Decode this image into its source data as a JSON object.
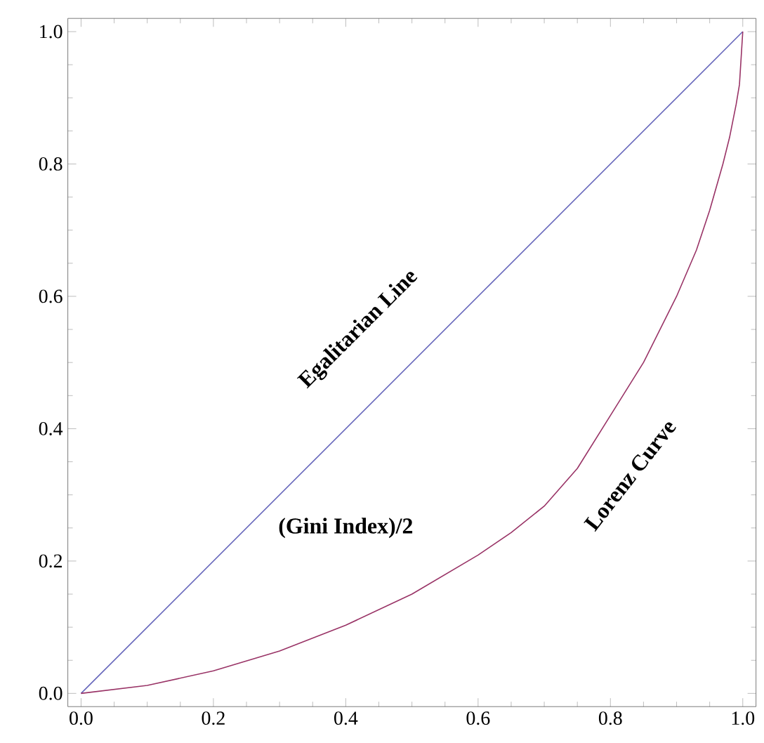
{
  "chart_data": {
    "type": "line",
    "xlim": [
      -0.02,
      1.02
    ],
    "ylim": [
      -0.02,
      1.02
    ],
    "xticks": [
      {
        "value": 0,
        "label": "0.0"
      },
      {
        "value": 0.2,
        "label": "0.2"
      },
      {
        "value": 0.4,
        "label": "0.4"
      },
      {
        "value": 0.6,
        "label": "0.6"
      },
      {
        "value": 0.8,
        "label": "0.8"
      },
      {
        "value": 1,
        "label": "1.0"
      }
    ],
    "yticks": [
      {
        "value": 0,
        "label": "0.0"
      },
      {
        "value": 0.2,
        "label": "0.2"
      },
      {
        "value": 0.4,
        "label": "0.4"
      },
      {
        "value": 0.6,
        "label": "0.6"
      },
      {
        "value": 0.8,
        "label": "0.8"
      },
      {
        "value": 1,
        "label": "1.0"
      }
    ],
    "series": [
      {
        "color": "#6666bb",
        "x": [
          0,
          1
        ],
        "values": [
          0,
          1
        ]
      },
      {
        "color": "#993366",
        "x": [
          0,
          0.1,
          0.2,
          0.3,
          0.4,
          0.5,
          0.6,
          0.65,
          0.7,
          0.75,
          0.8,
          0.85,
          0.9,
          0.93,
          0.95,
          0.97,
          0.98,
          0.99,
          0.995,
          1
        ],
        "values": [
          0,
          0.012,
          0.034,
          0.064,
          0.103,
          0.15,
          0.209,
          0.243,
          0.283,
          0.34,
          0.42,
          0.5,
          0.6,
          0.67,
          0.73,
          0.8,
          0.84,
          0.89,
          0.92,
          1
        ]
      }
    ],
    "annotations": [
      "Egalitarian Line",
      "(Gini Index)/2",
      "Lorenz Curve"
    ],
    "grid": false,
    "marker": "none",
    "line_style": "solid"
  }
}
